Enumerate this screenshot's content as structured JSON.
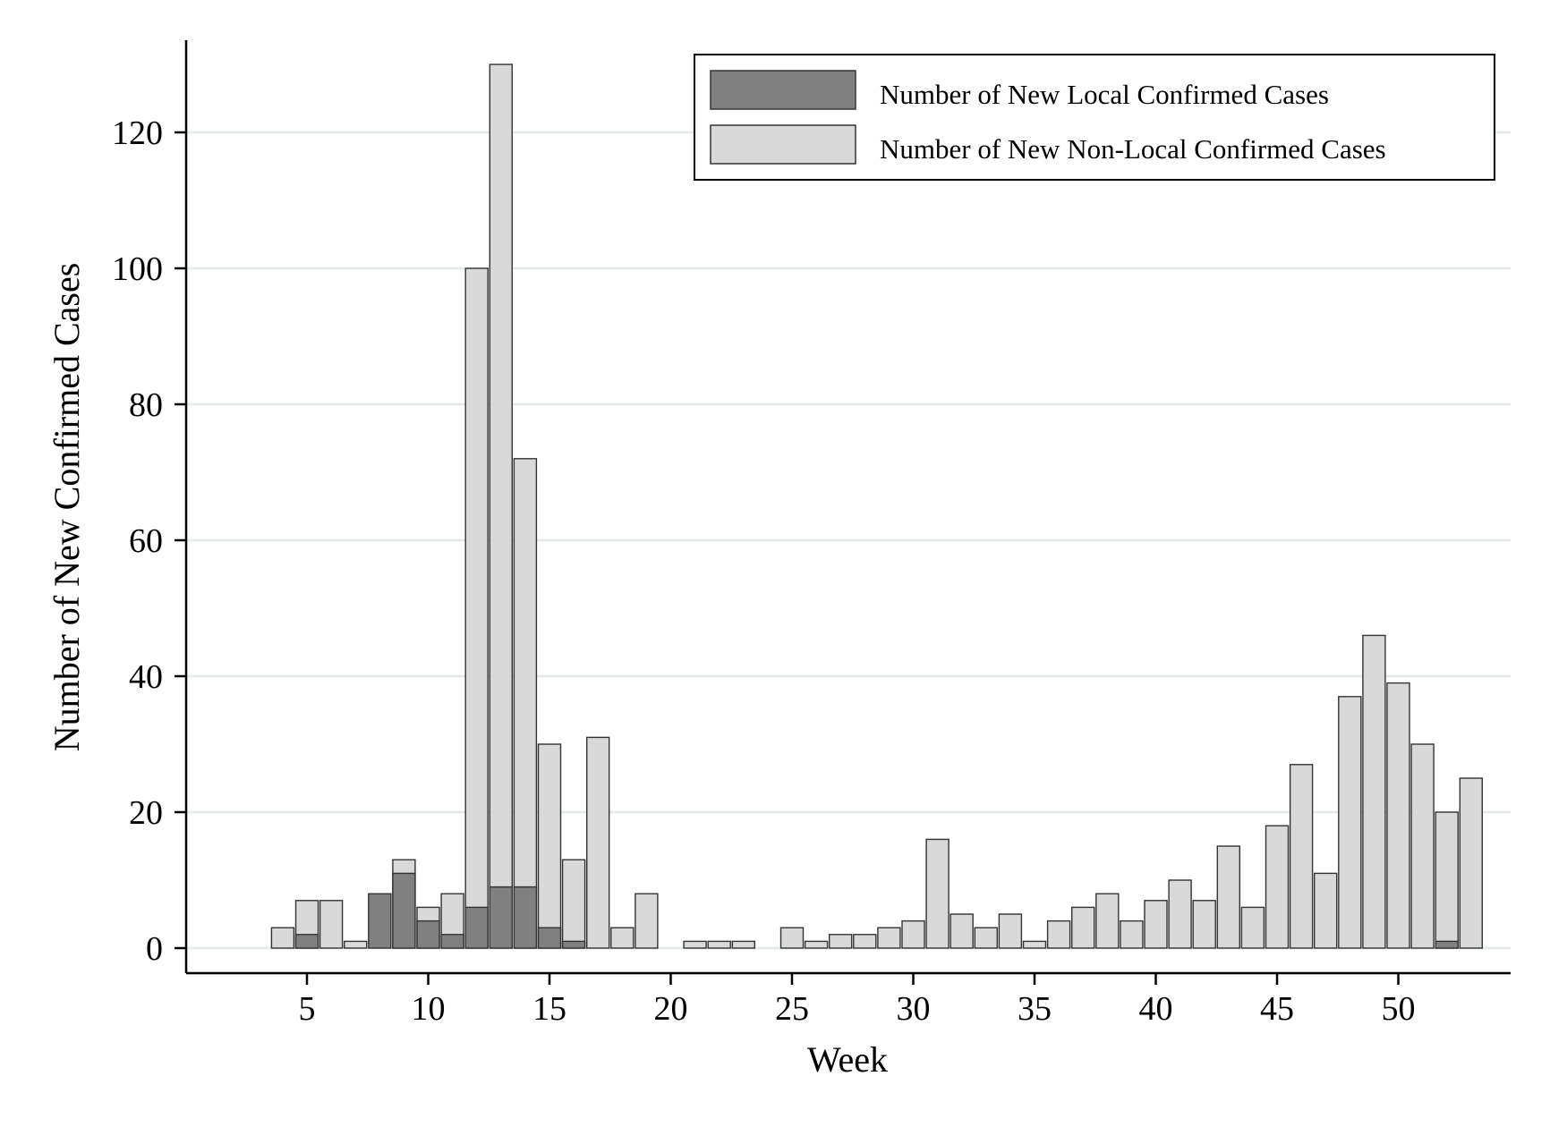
{
  "chart_data": {
    "type": "bar",
    "title": "",
    "xlabel": "Week",
    "ylabel": "Number of New Confirmed Cases",
    "xlim": [
      1,
      55
    ],
    "ylim": [
      -4,
      134
    ],
    "xticks": [
      5,
      10,
      15,
      20,
      25,
      30,
      35,
      40,
      45,
      50
    ],
    "yticks": [
      0,
      20,
      40,
      60,
      80,
      100,
      120
    ],
    "grid": "horizontal",
    "legend_position": "top-right",
    "x": [
      4,
      5,
      6,
      7,
      8,
      9,
      10,
      11,
      12,
      13,
      14,
      15,
      16,
      17,
      18,
      19,
      20,
      21,
      22,
      23,
      24,
      25,
      26,
      27,
      28,
      29,
      30,
      31,
      32,
      33,
      34,
      35,
      36,
      37,
      38,
      39,
      40,
      41,
      42,
      43,
      44,
      45,
      46,
      47,
      48,
      49,
      50,
      51,
      52,
      53
    ],
    "series": [
      {
        "name": "Number of New Non-Local Confirmed Cases",
        "color": "#d9d9d9",
        "values": [
          3,
          7,
          7,
          1,
          0,
          13,
          6,
          8,
          100,
          130,
          72,
          30,
          13,
          31,
          3,
          8,
          0,
          1,
          1,
          1,
          0,
          3,
          1,
          2,
          2,
          3,
          4,
          16,
          5,
          3,
          5,
          1,
          4,
          6,
          8,
          4,
          7,
          10,
          7,
          15,
          6,
          18,
          27,
          11,
          37,
          46,
          39,
          30,
          20,
          25
        ]
      },
      {
        "name": "Number of New Local Confirmed Cases",
        "color": "#808080",
        "values": [
          0,
          2,
          0,
          0,
          8,
          11,
          4,
          2,
          6,
          9,
          9,
          3,
          1,
          0,
          0,
          0,
          0,
          0,
          0,
          0,
          0,
          0,
          0,
          0,
          0,
          0,
          0,
          0,
          0,
          0,
          0,
          0,
          0,
          0,
          0,
          0,
          0,
          0,
          0,
          0,
          0,
          0,
          0,
          0,
          0,
          0,
          0,
          0,
          1,
          0
        ]
      }
    ]
  },
  "colors": {
    "grid": "#e4ece9",
    "axis": "#000000",
    "bar_edge": "#333333"
  }
}
